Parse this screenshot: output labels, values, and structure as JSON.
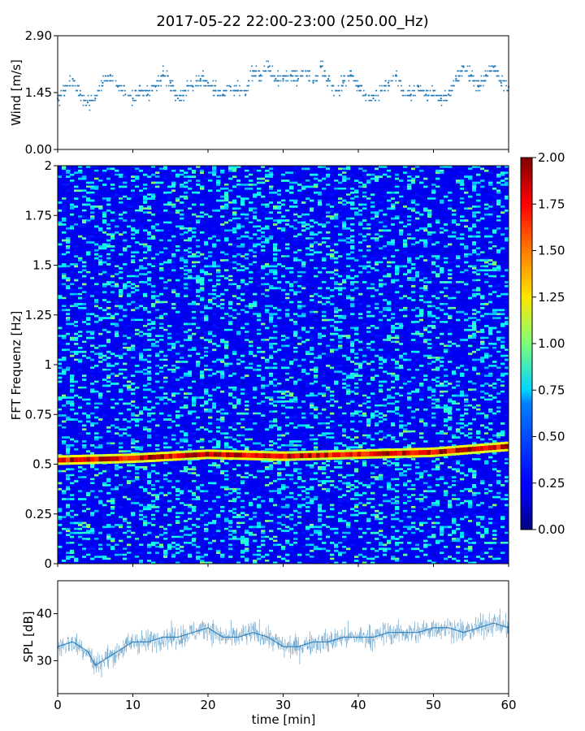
{
  "title": "2017-05-22 22:00-23:00 (250.00_Hz)",
  "chart_data": [
    {
      "type": "scatter",
      "panel": "wind",
      "ylabel": "Wind [m/s]",
      "ylim": [
        0,
        2.9
      ],
      "yticks": [
        "0.00",
        "1.45",
        "2.90"
      ],
      "xlim": [
        0,
        60
      ],
      "x": [
        0,
        1,
        2,
        3,
        4,
        5,
        6,
        7,
        8,
        9,
        10,
        11,
        12,
        13,
        14,
        15,
        16,
        17,
        18,
        19,
        20,
        21,
        22,
        23,
        24,
        25,
        26,
        27,
        28,
        29,
        30,
        31,
        32,
        33,
        34,
        35,
        36,
        37,
        38,
        39,
        40,
        41,
        42,
        43,
        44,
        45,
        46,
        47,
        48,
        49,
        50,
        51,
        52,
        53,
        54,
        55,
        56,
        57,
        58,
        59,
        60
      ],
      "y": [
        1.3,
        1.5,
        1.8,
        1.4,
        1.2,
        1.3,
        1.7,
        1.9,
        1.6,
        1.4,
        1.3,
        1.5,
        1.4,
        1.6,
        1.9,
        1.7,
        1.3,
        1.5,
        1.6,
        1.8,
        1.7,
        1.5,
        1.4,
        1.6,
        1.5,
        1.4,
        2.0,
        1.9,
        2.1,
        1.8,
        1.8,
        1.9,
        1.8,
        2.0,
        1.7,
        2.1,
        1.8,
        1.5,
        1.7,
        1.9,
        1.6,
        1.4,
        1.3,
        1.5,
        1.7,
        1.9,
        1.5,
        1.4,
        1.6,
        1.4,
        1.5,
        1.3,
        1.4,
        1.8,
        2.1,
        1.9,
        1.6,
        1.9,
        2.1,
        1.7,
        1.6
      ]
    },
    {
      "type": "heatmap",
      "panel": "spectrogram",
      "ylabel": "FFT Frequenz [Hz]",
      "ylim": [
        0,
        2
      ],
      "yticks": [
        "0",
        "0.25",
        "0.5",
        "0.75",
        "1",
        "1.25",
        "1.5",
        "1.75",
        "2"
      ],
      "xlim": [
        0,
        60
      ],
      "colormap": "jet",
      "clim": [
        0,
        2
      ],
      "colorbar_ticks": [
        "0.00",
        "0.25",
        "0.50",
        "0.75",
        "1.00",
        "1.25",
        "1.50",
        "1.75",
        "2.00"
      ],
      "peak_x": [
        0,
        10,
        20,
        30,
        40,
        50,
        60
      ],
      "peak_frequency_hz": [
        0.52,
        0.53,
        0.55,
        0.54,
        0.55,
        0.56,
        0.59
      ],
      "peak_intensity": 2.0,
      "background_intensity": 0.22
    },
    {
      "type": "line",
      "panel": "spl",
      "ylabel": "SPL [dB]",
      "ylim": [
        23,
        47
      ],
      "yticks": [
        "30",
        "40"
      ],
      "xlim": [
        0,
        60
      ],
      "xlabel": "time [min]",
      "xticks": [
        "0",
        "10",
        "20",
        "30",
        "40",
        "50",
        "60"
      ],
      "x": [
        0,
        2,
        4,
        5,
        6,
        8,
        10,
        12,
        14,
        16,
        18,
        20,
        22,
        24,
        26,
        28,
        30,
        32,
        34,
        36,
        38,
        40,
        42,
        44,
        46,
        48,
        50,
        52,
        54,
        56,
        58,
        60
      ],
      "y": [
        33,
        34,
        32,
        29,
        30,
        32,
        34,
        34,
        35,
        35,
        36,
        37,
        35,
        35,
        36,
        35,
        33,
        33,
        34,
        34,
        35,
        35,
        35,
        36,
        36,
        36,
        37,
        37,
        36,
        37,
        38,
        37
      ]
    }
  ]
}
